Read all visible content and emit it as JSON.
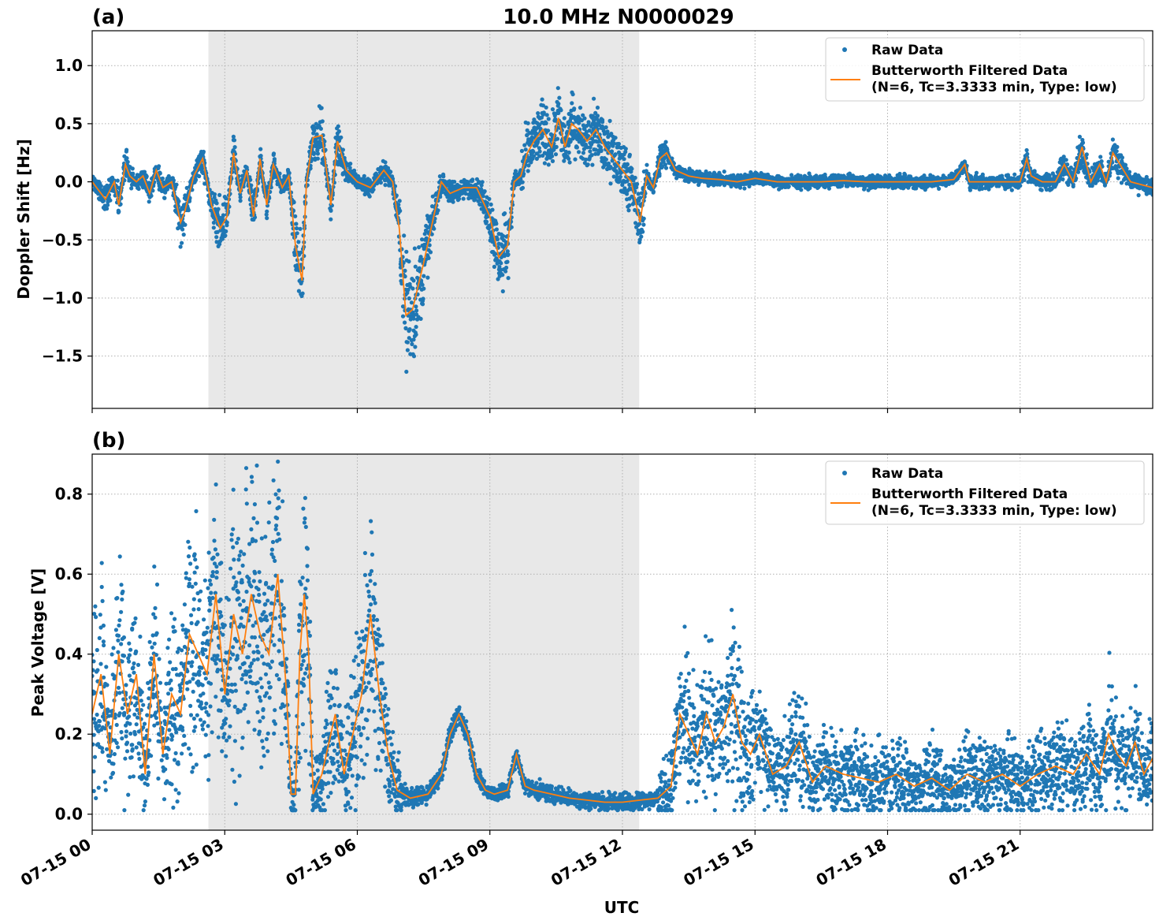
{
  "figure": {
    "title": "10.0 MHz N0000029",
    "xlabel": "UTC",
    "x_tick_labels": [
      "07-15 00",
      "07-15 03",
      "07-15 06",
      "07-15 09",
      "07-15 12",
      "07-15 15",
      "07-15 18",
      "07-15 21"
    ],
    "colors": {
      "raw": "#1f77b4",
      "filtered": "#ff7f0e",
      "shade": "#e8e8e8",
      "grid": "#b0b0b0"
    }
  },
  "chart_data": [
    {
      "type": "scatter",
      "panel_label": "(a)",
      "title": "10.0 MHz N0000029",
      "xlabel": "UTC",
      "ylabel": "Doppler Shift [Hz]",
      "x_unit": "hours UTC on 07-15",
      "xlim": [
        0,
        24
      ],
      "ylim": [
        -1.95,
        1.3
      ],
      "y_ticks": [
        1.0,
        0.5,
        0.0,
        -0.5,
        -1.0,
        -1.5
      ],
      "y_tick_labels": [
        "1.0",
        "0.5",
        "0.0",
        "−0.5",
        "−1.0",
        "−1.5"
      ],
      "shaded_x_range": [
        2.63,
        12.38
      ],
      "grid": true,
      "legend_position": "top-right",
      "legend": [
        {
          "name": "Raw Data",
          "marker": "dot"
        },
        {
          "name": "Butterworth Filtered Data",
          "name_line2": "(N=6, Tc=3.3333 min, Type: low)",
          "marker": "line"
        }
      ],
      "series": [
        {
          "name": "Butterworth Filtered Data",
          "x": [
            0,
            0.3,
            0.5,
            0.6,
            0.75,
            0.85,
            1.0,
            1.15,
            1.3,
            1.45,
            1.6,
            1.8,
            2.0,
            2.1,
            2.3,
            2.5,
            2.7,
            2.9,
            3.05,
            3.2,
            3.35,
            3.5,
            3.65,
            3.8,
            3.95,
            4.1,
            4.3,
            4.45,
            4.6,
            4.75,
            4.85,
            5.0,
            5.2,
            5.4,
            5.55,
            5.75,
            6.0,
            6.3,
            6.6,
            6.8,
            6.95,
            7.1,
            7.25,
            7.5,
            7.7,
            7.9,
            8.1,
            8.4,
            8.7,
            9.0,
            9.2,
            9.4,
            9.55,
            9.7,
            9.85,
            10.0,
            10.2,
            10.4,
            10.55,
            10.7,
            10.85,
            11.0,
            11.2,
            11.4,
            11.6,
            11.8,
            12.0,
            12.2,
            12.4,
            12.55,
            12.7,
            12.85,
            13.0,
            13.2,
            13.5,
            13.8,
            14.2,
            14.6,
            15.0,
            15.5,
            16.0,
            16.5,
            17.0,
            17.5,
            18.0,
            18.5,
            19.0,
            19.5,
            19.75,
            19.85,
            20.0,
            20.5,
            21.0,
            21.15,
            21.25,
            21.5,
            21.8,
            22.0,
            22.2,
            22.4,
            22.6,
            22.8,
            22.95,
            23.1,
            23.5,
            24.0
          ],
          "y": [
            0.0,
            -0.15,
            0.0,
            -0.2,
            0.15,
            0.05,
            0.0,
            0.05,
            -0.1,
            0.1,
            -0.05,
            0.0,
            -0.35,
            -0.25,
            0.05,
            0.2,
            -0.2,
            -0.4,
            -0.3,
            0.25,
            -0.1,
            0.1,
            -0.3,
            0.2,
            -0.2,
            0.15,
            -0.05,
            0.05,
            -0.55,
            -0.85,
            0.0,
            0.38,
            0.4,
            -0.2,
            0.35,
            0.1,
            0.0,
            -0.05,
            0.1,
            0.0,
            -0.4,
            -1.15,
            -1.1,
            -0.7,
            -0.35,
            0.0,
            -0.1,
            -0.05,
            -0.05,
            -0.3,
            -0.65,
            -0.55,
            0.0,
            0.05,
            0.25,
            0.35,
            0.45,
            0.3,
            0.55,
            0.3,
            0.5,
            0.45,
            0.35,
            0.45,
            0.3,
            0.2,
            0.1,
            0.0,
            -0.35,
            0.05,
            -0.05,
            0.2,
            0.25,
            0.1,
            0.05,
            0.03,
            0.02,
            0.0,
            0.03,
            0.0,
            0.0,
            0.0,
            0.01,
            0.0,
            0.0,
            0.0,
            0.0,
            0.02,
            0.15,
            0.0,
            0.0,
            0.0,
            0.0,
            0.2,
            0.05,
            0.0,
            0.0,
            0.15,
            0.0,
            0.3,
            0.0,
            0.15,
            0.0,
            0.25,
            0.0,
            -0.05
          ]
        }
      ]
    },
    {
      "type": "scatter",
      "panel_label": "(b)",
      "xlabel": "UTC",
      "ylabel": "Peak Voltage [V]",
      "x_unit": "hours UTC on 07-15",
      "xlim": [
        0,
        24
      ],
      "ylim": [
        -0.04,
        0.9
      ],
      "y_ticks": [
        0.8,
        0.6,
        0.4,
        0.2,
        0.0
      ],
      "y_tick_labels": [
        "0.8",
        "0.6",
        "0.4",
        "0.2",
        "0.0"
      ],
      "shaded_x_range": [
        2.63,
        12.38
      ],
      "grid": true,
      "legend_position": "top-right",
      "legend": [
        {
          "name": "Raw Data",
          "marker": "dot"
        },
        {
          "name": "Butterworth Filtered Data",
          "name_line2": "(N=6, Tc=3.3333 min, Type: low)",
          "marker": "line"
        }
      ],
      "series": [
        {
          "name": "Butterworth Filtered Data",
          "x": [
            0,
            0.2,
            0.4,
            0.6,
            0.8,
            1.0,
            1.2,
            1.4,
            1.6,
            1.8,
            2.0,
            2.2,
            2.4,
            2.6,
            2.8,
            3.0,
            3.2,
            3.4,
            3.6,
            3.8,
            4.0,
            4.2,
            4.4,
            4.5,
            4.6,
            4.7,
            4.8,
            4.9,
            5.0,
            5.2,
            5.5,
            5.7,
            5.9,
            6.1,
            6.3,
            6.5,
            6.7,
            6.9,
            7.2,
            7.6,
            7.9,
            8.1,
            8.3,
            8.5,
            8.7,
            8.9,
            9.1,
            9.4,
            9.6,
            9.8,
            10.0,
            10.4,
            10.8,
            11.2,
            11.6,
            12.0,
            12.4,
            12.8,
            13.1,
            13.3,
            13.5,
            13.7,
            13.9,
            14.1,
            14.3,
            14.5,
            14.7,
            14.9,
            15.1,
            15.4,
            15.7,
            16.0,
            16.3,
            16.6,
            17.0,
            17.4,
            17.8,
            18.2,
            18.6,
            19.0,
            19.4,
            19.8,
            20.2,
            20.6,
            21.0,
            21.4,
            21.8,
            22.2,
            22.5,
            22.8,
            23.0,
            23.2,
            23.4,
            23.6,
            23.8,
            24.0
          ],
          "y": [
            0.25,
            0.35,
            0.15,
            0.4,
            0.25,
            0.35,
            0.1,
            0.4,
            0.15,
            0.3,
            0.25,
            0.45,
            0.4,
            0.35,
            0.55,
            0.3,
            0.5,
            0.4,
            0.55,
            0.45,
            0.4,
            0.6,
            0.3,
            0.05,
            0.05,
            0.4,
            0.55,
            0.4,
            0.05,
            0.1,
            0.25,
            0.1,
            0.2,
            0.3,
            0.5,
            0.3,
            0.15,
            0.06,
            0.04,
            0.05,
            0.1,
            0.2,
            0.25,
            0.2,
            0.1,
            0.06,
            0.05,
            0.06,
            0.15,
            0.07,
            0.06,
            0.05,
            0.04,
            0.035,
            0.03,
            0.03,
            0.035,
            0.04,
            0.07,
            0.25,
            0.2,
            0.15,
            0.25,
            0.18,
            0.22,
            0.3,
            0.18,
            0.15,
            0.2,
            0.1,
            0.12,
            0.18,
            0.08,
            0.12,
            0.1,
            0.09,
            0.08,
            0.1,
            0.07,
            0.09,
            0.06,
            0.1,
            0.08,
            0.1,
            0.07,
            0.1,
            0.12,
            0.1,
            0.15,
            0.1,
            0.2,
            0.15,
            0.12,
            0.18,
            0.1,
            0.14
          ]
        }
      ]
    }
  ]
}
